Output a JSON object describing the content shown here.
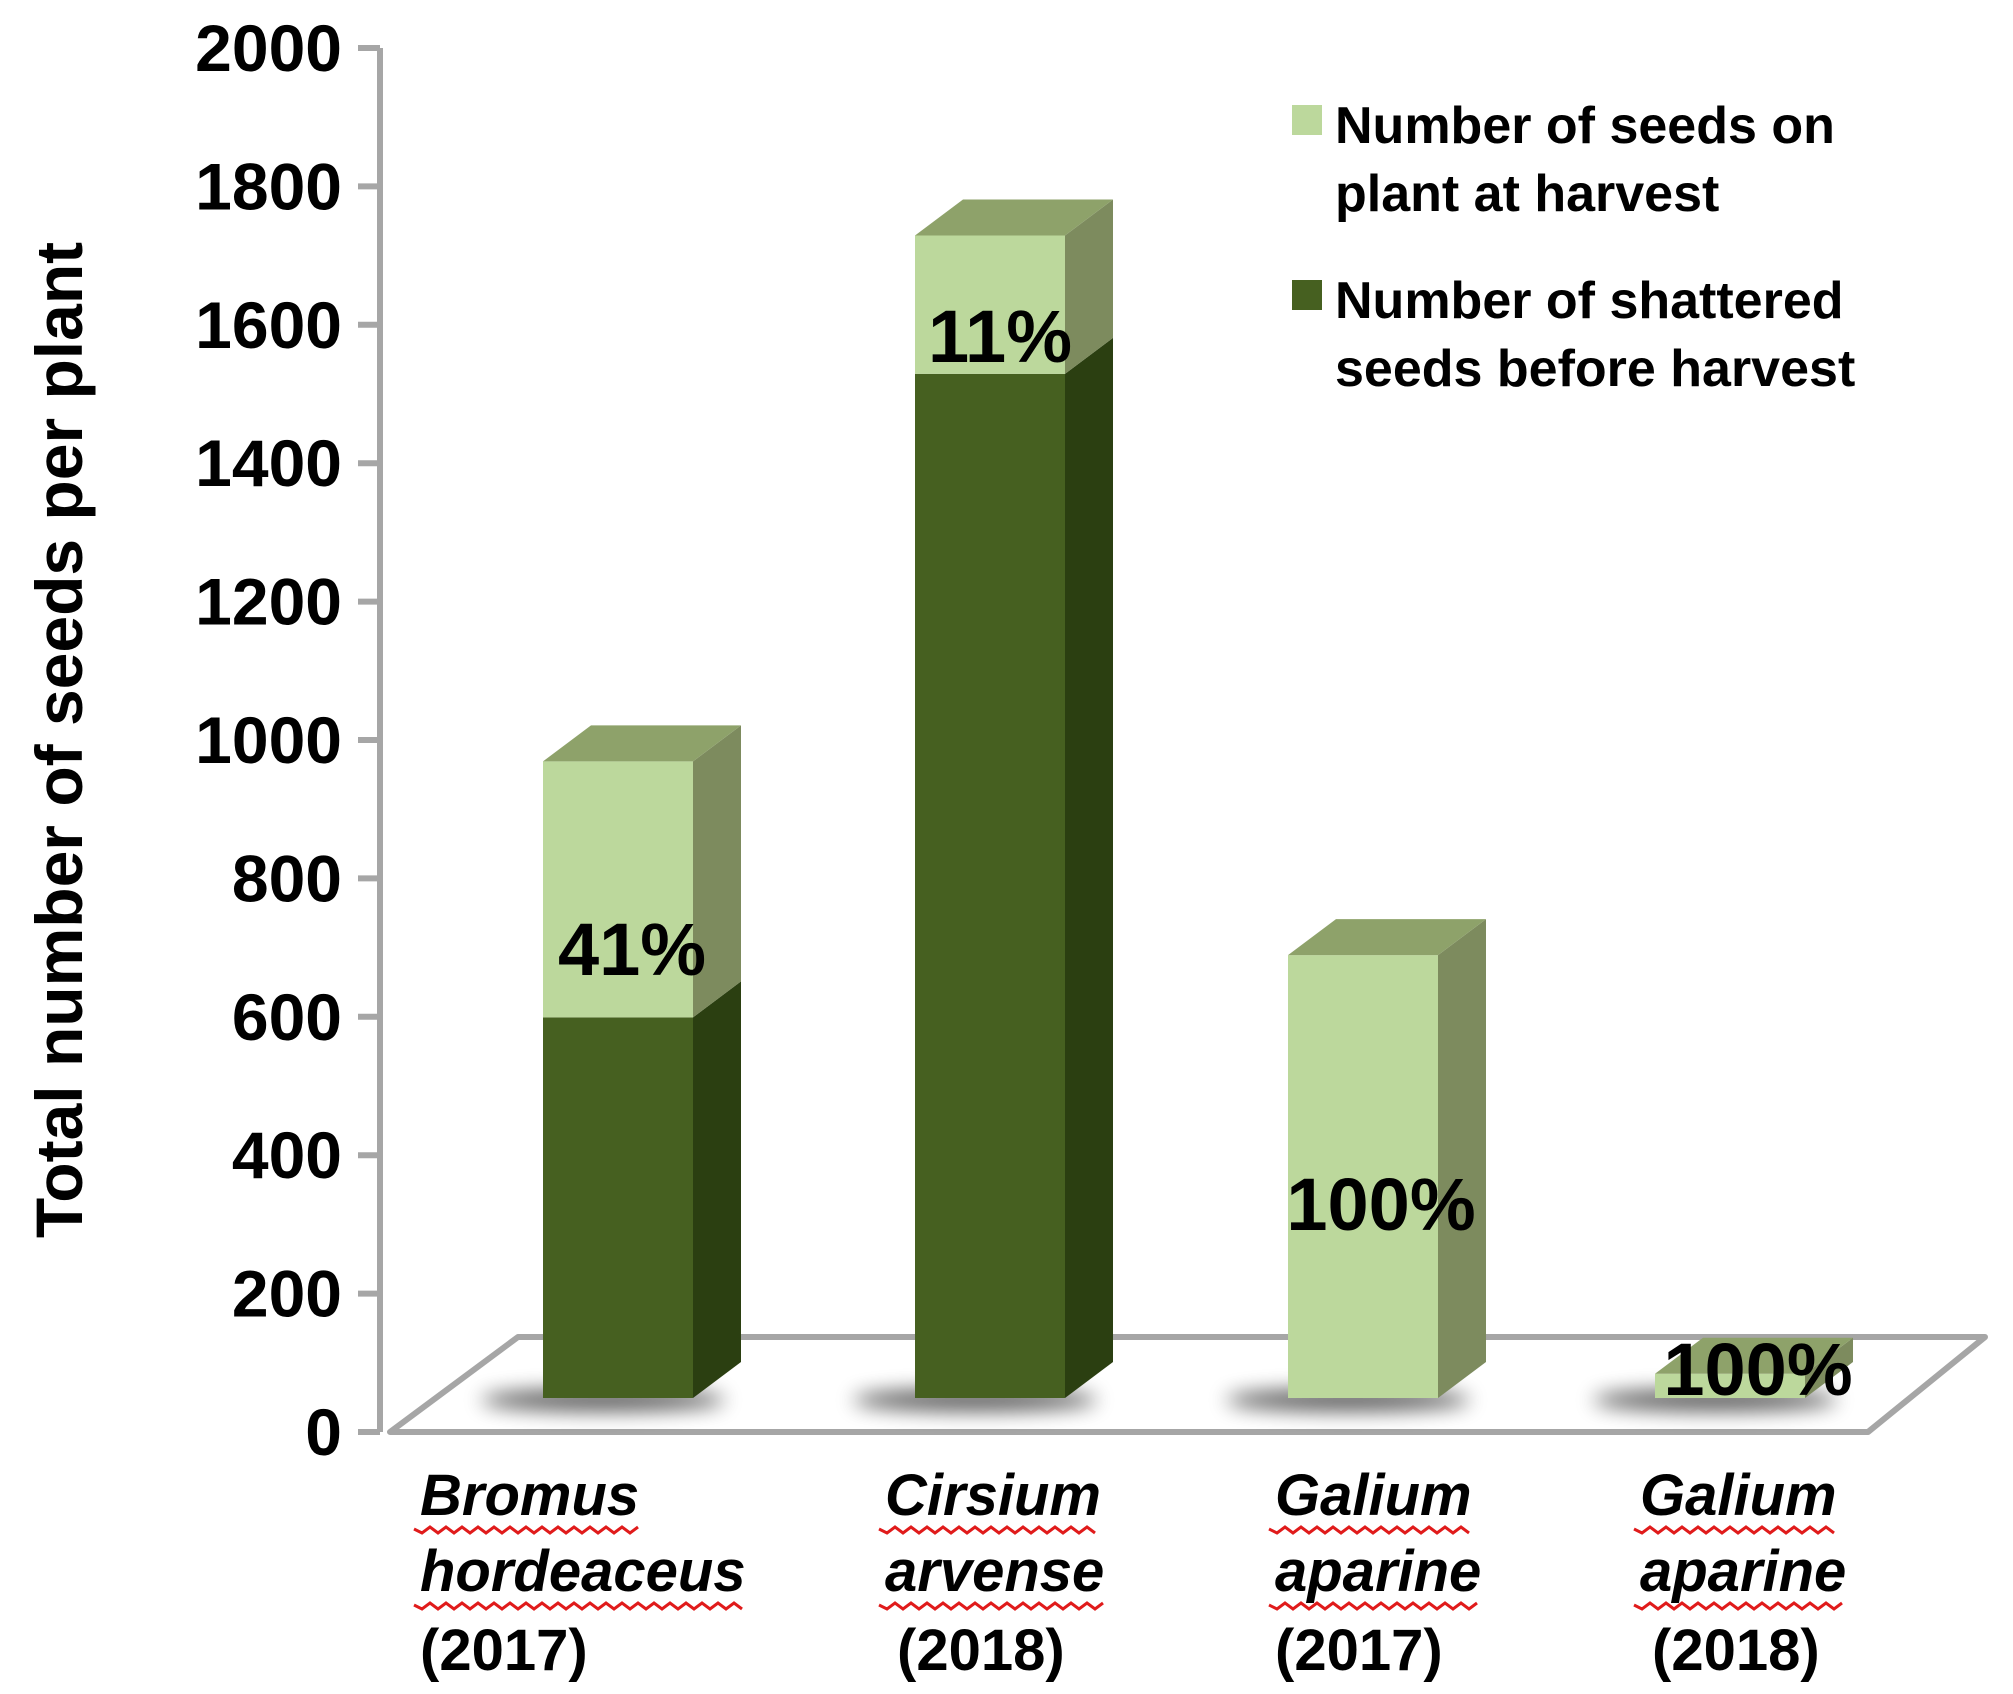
{
  "chart_data": {
    "type": "bar",
    "stacked": true,
    "three_d": true,
    "title": "",
    "ylabel": "Total number of seeds per plant",
    "ylim": [
      0,
      2000
    ],
    "yticks": [
      0,
      200,
      400,
      600,
      800,
      1000,
      1200,
      1400,
      1600,
      1800,
      2000
    ],
    "grid": false,
    "legend_position": "top-right",
    "categories": [
      {
        "name_lines": [
          "Bromus",
          "hordeaceus"
        ],
        "year": "(2017)"
      },
      {
        "name_lines": [
          "Cirsium",
          "arvense"
        ],
        "year": "(2018)"
      },
      {
        "name_lines": [
          "Galium",
          "aparine"
        ],
        "year": "(2017)"
      },
      {
        "name_lines": [
          "Galium",
          "aparine"
        ],
        "year": "(2018)"
      }
    ],
    "series": [
      {
        "name_lines": [
          "Number of shattered",
          "seeds before harvest"
        ],
        "color": "#466020",
        "side_color": "#2b3f11",
        "top_color": "#6b8240",
        "values": [
          550,
          1480,
          0,
          0
        ]
      },
      {
        "name_lines": [
          "Number of seeds on",
          "plant at harvest"
        ],
        "color": "#bcd89c",
        "side_color": "#7d8b5e",
        "top_color": "#8ea26a",
        "values": [
          370,
          200,
          640,
          35
        ]
      }
    ],
    "annotations": [
      "41%",
      "11%",
      "100%",
      "100%"
    ]
  }
}
